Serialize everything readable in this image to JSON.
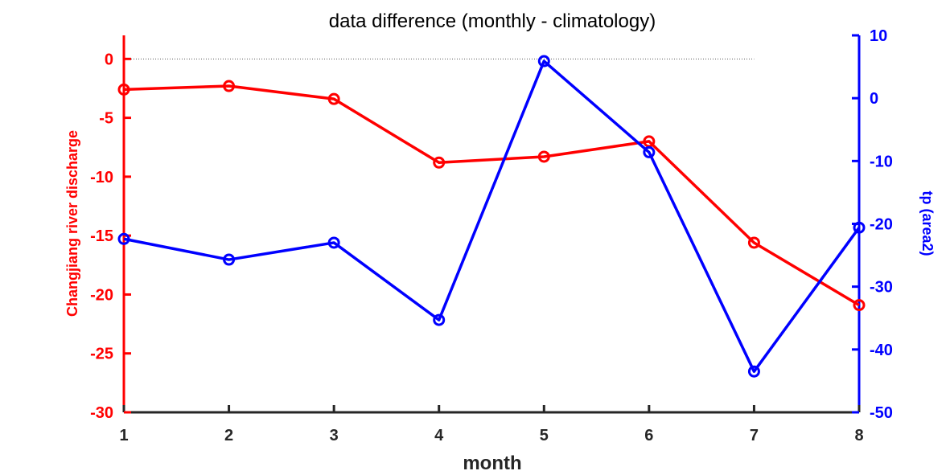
{
  "chart_data": {
    "type": "line",
    "title": "data difference (monthly - climatology)",
    "xlabel": "month",
    "x": [
      1,
      2,
      3,
      4,
      5,
      6,
      7,
      8
    ],
    "xlim": [
      1,
      8
    ],
    "x_ticks": [
      1,
      2,
      3,
      4,
      5,
      6,
      7,
      8
    ],
    "grid": false,
    "legend": "none",
    "reference_line": {
      "axis": "left",
      "y": 0,
      "x_range": [
        1,
        7
      ],
      "style": "dotted"
    },
    "series": [
      {
        "name": "Changjiang river discharge",
        "axis": "left",
        "color": "#ff0000",
        "marker": "circle",
        "values": [
          -2.6,
          -2.3,
          -3.4,
          -8.8,
          -8.3,
          -7.0,
          -15.6,
          -20.9
        ]
      },
      {
        "name": "tp (area2)",
        "axis": "right",
        "color": "#0000ff",
        "marker": "circle",
        "values": [
          -22.4,
          -25.7,
          -23.0,
          -35.3,
          5.9,
          -8.6,
          -43.5,
          -20.6
        ]
      }
    ],
    "y_left": {
      "label": "Changjiang river discharge",
      "lim": [
        -30,
        2
      ],
      "ticks": [
        0,
        -5,
        -10,
        -15,
        -20,
        -25,
        -30
      ],
      "color": "#ff0000"
    },
    "y_right": {
      "label": "tp (area2)",
      "lim": [
        -50,
        10
      ],
      "ticks": [
        10,
        0,
        -10,
        -20,
        -30,
        -40,
        -50
      ],
      "color": "#0000ff"
    }
  }
}
